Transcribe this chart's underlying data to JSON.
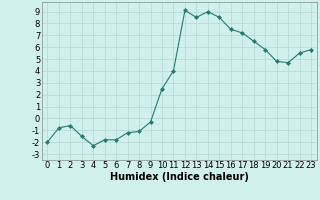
{
  "x": [
    0,
    1,
    2,
    3,
    4,
    5,
    6,
    7,
    8,
    9,
    10,
    11,
    12,
    13,
    14,
    15,
    16,
    17,
    18,
    19,
    20,
    21,
    22,
    23
  ],
  "y": [
    -2,
    -0.8,
    -0.6,
    -1.5,
    -2.3,
    -1.8,
    -1.8,
    -1.2,
    -1.1,
    -0.3,
    2.5,
    4.0,
    9.1,
    8.5,
    9.0,
    8.5,
    7.5,
    7.2,
    6.5,
    5.8,
    4.8,
    4.7,
    5.5,
    5.8
  ],
  "line_color": "#2a7a6a",
  "marker": "D",
  "marker_size": 2.0,
  "bg_color": "#cff0eb",
  "grid_color": "#b0d8d0",
  "xlabel": "Humidex (Indice chaleur)",
  "ylim": [
    -3.5,
    9.8
  ],
  "xlim": [
    -0.5,
    23.5
  ],
  "yticks": [
    -3,
    -2,
    -1,
    0,
    1,
    2,
    3,
    4,
    5,
    6,
    7,
    8,
    9
  ],
  "xticks": [
    0,
    1,
    2,
    3,
    4,
    5,
    6,
    7,
    8,
    9,
    10,
    11,
    12,
    13,
    14,
    15,
    16,
    17,
    18,
    19,
    20,
    21,
    22,
    23
  ],
  "xlabel_fontsize": 7,
  "tick_fontsize": 6,
  "line_width": 0.8
}
